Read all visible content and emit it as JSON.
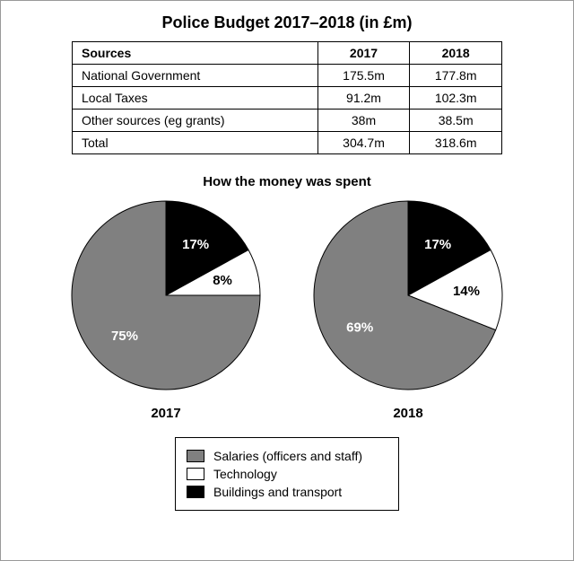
{
  "title": "Police Budget 2017–2018 (in £m)",
  "table": {
    "header": {
      "sources": "Sources",
      "year1": "2017",
      "year2": "2018"
    },
    "rows": [
      {
        "label": "National Government",
        "y1": "175.5m",
        "y2": "177.8m"
      },
      {
        "label": "Local Taxes",
        "y1": "91.2m",
        "y2": "102.3m"
      },
      {
        "label": "Other sources (eg grants)",
        "y1": "38m",
        "y2": "38.5m"
      },
      {
        "label": "Total",
        "y1": "304.7m",
        "y2": "318.6m"
      }
    ]
  },
  "subtitle": "How the money was spent",
  "colors": {
    "salaries": "#808080",
    "technology": "#ffffff",
    "buildings": "#000000",
    "stroke": "#000000",
    "label_on_dark": "#ffffff",
    "label_on_light": "#000000"
  },
  "pies": {
    "radius": 105,
    "size": 220,
    "start_angle_deg": -90,
    "order": [
      "buildings",
      "technology",
      "salaries"
    ],
    "charts": [
      {
        "year": "2017",
        "slices": {
          "salaries": {
            "value": 75,
            "label": "75%",
            "label_color_key": "label_on_dark"
          },
          "technology": {
            "value": 8,
            "label": "8%",
            "label_color_key": "label_on_light"
          },
          "buildings": {
            "value": 17,
            "label": "17%",
            "label_color_key": "label_on_dark"
          }
        }
      },
      {
        "year": "2018",
        "slices": {
          "salaries": {
            "value": 69,
            "label": "69%",
            "label_color_key": "label_on_dark"
          },
          "technology": {
            "value": 14,
            "label": "14%",
            "label_color_key": "label_on_light"
          },
          "buildings": {
            "value": 17,
            "label": "17%",
            "label_color_key": "label_on_dark"
          }
        }
      }
    ]
  },
  "legend": {
    "items": [
      {
        "key": "salaries",
        "label": "Salaries (officers and staff)"
      },
      {
        "key": "technology",
        "label": "Technology"
      },
      {
        "key": "buildings",
        "label": "Buildings and transport"
      }
    ]
  }
}
